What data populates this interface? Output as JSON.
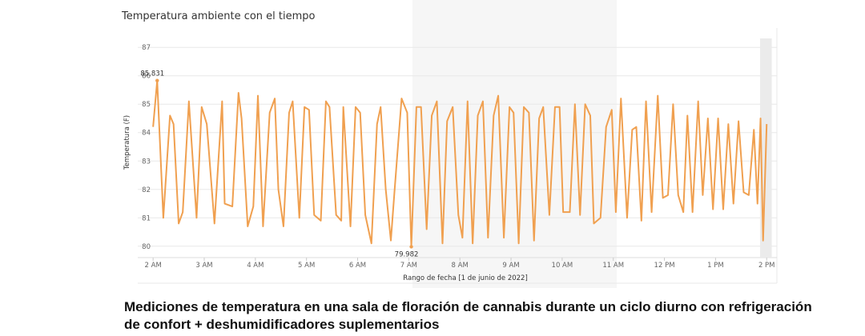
{
  "title": "Temperatura ambiente con el tiempo",
  "caption": "Mediciones de temperatura en una sala de floración de cannabis durante un ciclo diurno con refrigeración de confort + deshumidificadores suplementarios",
  "colors": {
    "line": "#f0a050",
    "grid": "#e8e8e8",
    "highlight": "#ebebeb"
  },
  "chart_data": {
    "type": "line",
    "xlabel": "Rango de fecha [1 de junio de 2022]",
    "ylabel": "Temperatura (F)",
    "ylim": [
      79.6,
      87.4
    ],
    "xlim": [
      1.7,
      14.2
    ],
    "grid": true,
    "y_ticks": [
      "80",
      "81",
      "82",
      "83",
      "84",
      "85",
      "86",
      "87"
    ],
    "x_ticks": [
      {
        "x": 2,
        "label": "2 AM"
      },
      {
        "x": 3,
        "label": "3 AM"
      },
      {
        "x": 4,
        "label": "4 AM"
      },
      {
        "x": 5,
        "label": "5 AM"
      },
      {
        "x": 6,
        "label": "6 AM"
      },
      {
        "x": 7,
        "label": "7 AM"
      },
      {
        "x": 8,
        "label": "8 AM"
      },
      {
        "x": 9,
        "label": "9 AM"
      },
      {
        "x": 10,
        "label": "10 AM"
      },
      {
        "x": 11,
        "label": "11 AM"
      },
      {
        "x": 12,
        "label": "12 PM"
      },
      {
        "x": 13,
        "label": "1 PM"
      },
      {
        "x": 14,
        "label": "2 PM"
      }
    ],
    "highlight_band": [
      13.87,
      14.1
    ],
    "series": [
      {
        "x": [
          2.0,
          2.08,
          2.2,
          2.33,
          2.4,
          2.5,
          2.58,
          2.7,
          2.85,
          2.95,
          3.05,
          3.2,
          3.35,
          3.4,
          3.55,
          3.67,
          3.73,
          3.85,
          3.96,
          4.05,
          4.15,
          4.28,
          4.38,
          4.45,
          4.55,
          4.66,
          4.73,
          4.86,
          4.96,
          5.05,
          5.15,
          5.28,
          5.38,
          5.45,
          5.58,
          5.68,
          5.72,
          5.86,
          5.96,
          6.05,
          6.15,
          6.27,
          6.38,
          6.45,
          6.55,
          6.65,
          6.72,
          6.86,
          6.97,
          7.05,
          7.15,
          7.24,
          7.35,
          7.45,
          7.55,
          7.66,
          7.75,
          7.86,
          7.97,
          8.05,
          8.15,
          8.25,
          8.35,
          8.45,
          8.55,
          8.66,
          8.75,
          8.86,
          8.97,
          9.05,
          9.15,
          9.25,
          9.35,
          9.45,
          9.55,
          9.63,
          9.75,
          9.86,
          9.95,
          10.02,
          10.15,
          10.25,
          10.35,
          10.45,
          10.55,
          10.62,
          10.75,
          10.86,
          10.97,
          11.05,
          11.15,
          11.27,
          11.37,
          11.45,
          11.55,
          11.64,
          11.75,
          11.87,
          11.97,
          12.07,
          12.17,
          12.27,
          12.37,
          12.45,
          12.55,
          12.66,
          12.75,
          12.85,
          12.95,
          13.05,
          13.15,
          13.25,
          13.35,
          13.45,
          13.55,
          13.65,
          13.75,
          13.82,
          13.88,
          13.93,
          14.0
        ],
        "y": [
          84.2,
          85.831,
          81.0,
          84.6,
          84.3,
          80.8,
          81.2,
          85.1,
          81.0,
          84.9,
          84.3,
          80.8,
          85.1,
          81.5,
          81.4,
          85.4,
          84.5,
          80.7,
          81.4,
          85.3,
          80.7,
          84.7,
          85.2,
          82.0,
          80.7,
          84.7,
          85.1,
          81.0,
          84.9,
          84.8,
          81.1,
          80.9,
          85.1,
          84.9,
          81.1,
          80.9,
          84.9,
          80.7,
          84.9,
          84.7,
          81.1,
          80.1,
          84.3,
          84.9,
          82.0,
          80.2,
          81.9,
          85.2,
          84.7,
          79.982,
          84.9,
          84.9,
          80.6,
          84.6,
          85.1,
          80.1,
          84.4,
          84.9,
          81.1,
          80.3,
          85.1,
          80.1,
          84.6,
          85.1,
          80.3,
          84.6,
          85.3,
          80.3,
          84.9,
          84.7,
          80.1,
          84.9,
          84.7,
          80.2,
          84.5,
          84.9,
          81.1,
          84.9,
          84.9,
          81.2,
          81.2,
          85.0,
          81.1,
          85.0,
          84.6,
          80.8,
          81.0,
          84.2,
          84.8,
          81.2,
          85.2,
          81.0,
          84.1,
          84.2,
          80.9,
          85.1,
          81.2,
          85.3,
          81.7,
          81.8,
          85.0,
          81.8,
          81.2,
          84.6,
          81.2,
          85.1,
          81.8,
          84.5,
          81.3,
          84.5,
          81.3,
          84.3,
          81.5,
          84.4,
          81.9,
          81.8,
          84.1,
          81.5,
          84.5,
          80.2,
          84.3
        ]
      }
    ],
    "annotations": [
      {
        "x": 2.08,
        "y": 85.831,
        "text": "85.831"
      },
      {
        "x": 7.05,
        "y": 79.982,
        "text": "79.982"
      }
    ]
  }
}
